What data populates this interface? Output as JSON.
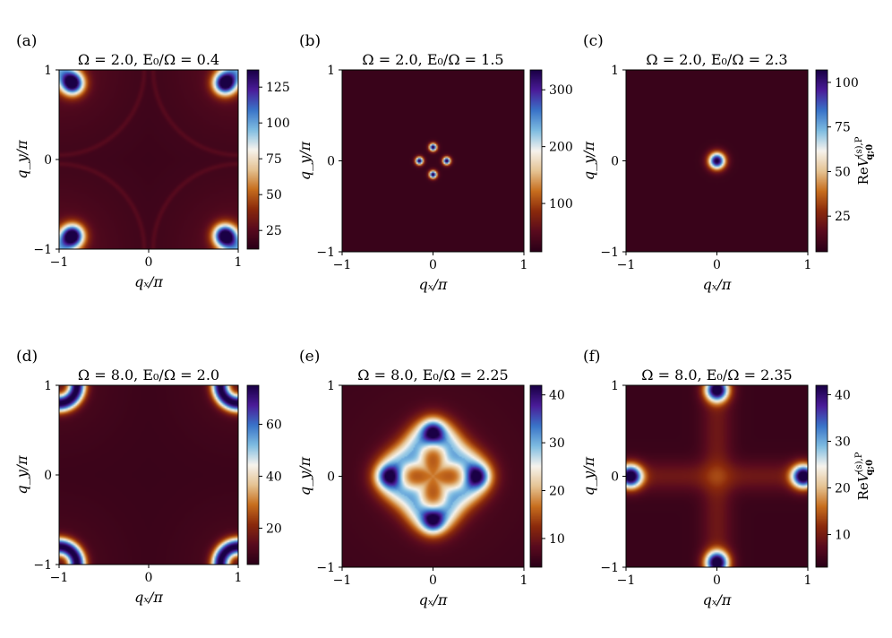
{
  "chart_data": {
    "type": "heatmap",
    "colormap": [
      "#2a0018",
      "#5a0b1e",
      "#8b2a0c",
      "#c86f1f",
      "#e6c494",
      "#f7f4ee",
      "#7fbde2",
      "#3a74c9",
      "#4b1d9a",
      "#1a0045"
    ],
    "panels": [
      {
        "tag": "(a)",
        "title": "Ω = 2.0, E₀/Ω = 0.4",
        "xlabel": "qₓ/π",
        "ylabel": "q_y/π",
        "xticks": [
          "−1",
          "0",
          "1"
        ],
        "yticks": [
          "−1",
          "0",
          "1"
        ],
        "xlim": [
          -1,
          1
        ],
        "ylim": [
          -1,
          1
        ],
        "cbar_ticks": [
          {
            "v": 25,
            "t": "25"
          },
          {
            "v": 50,
            "t": "50"
          },
          {
            "v": 75,
            "t": "75"
          },
          {
            "v": 100,
            "t": "100"
          },
          {
            "v": 125,
            "t": "125"
          }
        ],
        "vmin": 12,
        "vmax": 137,
        "cbar_label": "",
        "features": [
          {
            "kind": "corner_blobs",
            "x": 0.85,
            "y": 0.85,
            "peak": 137,
            "width": 0.09
          }
        ]
      },
      {
        "tag": "(b)",
        "title": "Ω = 2.0, E₀/Ω = 1.5",
        "xlabel": "qₓ/π",
        "ylabel": "q_y/π",
        "xticks": [
          "−1",
          "0",
          "1"
        ],
        "yticks": [
          "−1",
          "0",
          "1"
        ],
        "xlim": [
          -1,
          1
        ],
        "ylim": [
          -1,
          1
        ],
        "cbar_ticks": [
          {
            "v": 100,
            "t": "100"
          },
          {
            "v": 200,
            "t": "200"
          },
          {
            "v": 300,
            "t": "300"
          }
        ],
        "vmin": 15,
        "vmax": 335,
        "cbar_label": "",
        "features": [
          {
            "kind": "spot",
            "x": 0.15,
            "y": 0,
            "peak": 335,
            "width": 0.03
          },
          {
            "kind": "spot",
            "x": -0.15,
            "y": 0,
            "peak": 335,
            "width": 0.03
          },
          {
            "kind": "spot",
            "x": 0,
            "y": 0.15,
            "peak": 335,
            "width": 0.03
          },
          {
            "kind": "spot",
            "x": 0,
            "y": -0.15,
            "peak": 335,
            "width": 0.03
          }
        ]
      },
      {
        "tag": "(c)",
        "title": "Ω = 2.0, E₀/Ω = 2.3",
        "xlabel": "qₓ/π",
        "ylabel": "q_y/π",
        "xticks": [
          "−1",
          "0",
          "1"
        ],
        "yticks": [
          "−1",
          "0",
          "1"
        ],
        "xlim": [
          -1,
          1
        ],
        "ylim": [
          -1,
          1
        ],
        "cbar_ticks": [
          {
            "v": 25,
            "t": "25"
          },
          {
            "v": 50,
            "t": "50"
          },
          {
            "v": 75,
            "t": "75"
          },
          {
            "v": 100,
            "t": "100"
          }
        ],
        "vmin": 5,
        "vmax": 107,
        "cbar_label": "ReV^{(s),P}_{q;0}",
        "features": [
          {
            "kind": "spot",
            "x": 0,
            "y": 0,
            "peak": 107,
            "width": 0.065
          }
        ]
      },
      {
        "tag": "(d)",
        "title": "Ω = 8.0, E₀/Ω = 2.0",
        "xlabel": "qₓ/π",
        "ylabel": "q_y/π",
        "xticks": [
          "−1",
          "0",
          "1"
        ],
        "yticks": [
          "−1",
          "0",
          "1"
        ],
        "xlim": [
          -1,
          1
        ],
        "ylim": [
          -1,
          1
        ],
        "cbar_ticks": [
          {
            "v": 20,
            "t": "20"
          },
          {
            "v": 40,
            "t": "40"
          },
          {
            "v": 60,
            "t": "60"
          }
        ],
        "vmin": 6,
        "vmax": 75,
        "cbar_label": "",
        "features": [
          {
            "kind": "corner_arcs",
            "x": 0.9,
            "y": 0.9,
            "peak": 75,
            "width": 0.07
          }
        ]
      },
      {
        "tag": "(e)",
        "title": "Ω = 8.0, E₀/Ω = 2.25",
        "xlabel": "qₓ/π",
        "ylabel": "q_y/π",
        "xticks": [
          "−1",
          "0",
          "1"
        ],
        "yticks": [
          "−1",
          "0",
          "1"
        ],
        "xlim": [
          -1,
          1
        ],
        "ylim": [
          -1,
          1
        ],
        "cbar_ticks": [
          {
            "v": 10,
            "t": "10"
          },
          {
            "v": 20,
            "t": "20"
          },
          {
            "v": 30,
            "t": "30"
          },
          {
            "v": 40,
            "t": "40"
          }
        ],
        "vmin": 4,
        "vmax": 42,
        "cbar_label": "",
        "features": [
          {
            "kind": "ring4",
            "x": 0.45,
            "y": 0,
            "peak": 42,
            "width": 0.12,
            "center": 20
          }
        ]
      },
      {
        "tag": "(f)",
        "title": "Ω = 8.0, E₀/Ω = 2.35",
        "xlabel": "qₓ/π",
        "ylabel": "q_y/π",
        "xticks": [
          "−1",
          "0",
          "1"
        ],
        "yticks": [
          "−1",
          "0",
          "1"
        ],
        "xlim": [
          -1,
          1
        ],
        "ylim": [
          -1,
          1
        ],
        "cbar_ticks": [
          {
            "v": 10,
            "t": "10"
          },
          {
            "v": 20,
            "t": "20"
          },
          {
            "v": 30,
            "t": "30"
          },
          {
            "v": 40,
            "t": "40"
          }
        ],
        "vmin": 3,
        "vmax": 42,
        "cbar_label": "ReV^{(s),P}_{q;0}",
        "features": [
          {
            "kind": "edge_blobs",
            "x": 0.95,
            "y": 0,
            "peak": 42,
            "width": 0.1
          }
        ]
      }
    ]
  }
}
